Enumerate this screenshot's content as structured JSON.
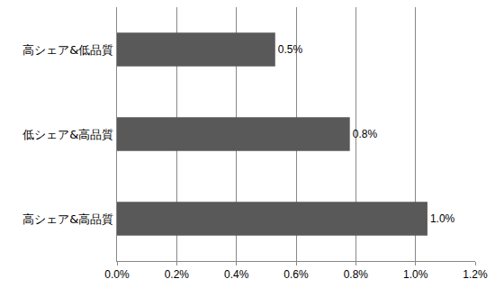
{
  "chart_data": {
    "type": "bar",
    "orientation": "horizontal",
    "categories": [
      "高シェア&低品質",
      "低シェア&高品質",
      "高シェア&高品質"
    ],
    "values": [
      0.53,
      0.78,
      1.04
    ],
    "value_labels": [
      "0.5%",
      "0.8%",
      "1.0%"
    ],
    "data_labels": true,
    "color": "#595959",
    "xlim": [
      0,
      1.2
    ],
    "xticks": [
      {
        "value": 0,
        "label": "0.0%"
      },
      {
        "value": 0.2,
        "label": "0.2%"
      },
      {
        "value": 0.4,
        "label": "0.4%"
      },
      {
        "value": 0.6,
        "label": "0.6%"
      },
      {
        "value": 0.8,
        "label": "0.8%"
      },
      {
        "value": 1.0,
        "label": "1.0%"
      },
      {
        "value": 1.2,
        "label": "1.2%"
      }
    ],
    "grid": true
  }
}
